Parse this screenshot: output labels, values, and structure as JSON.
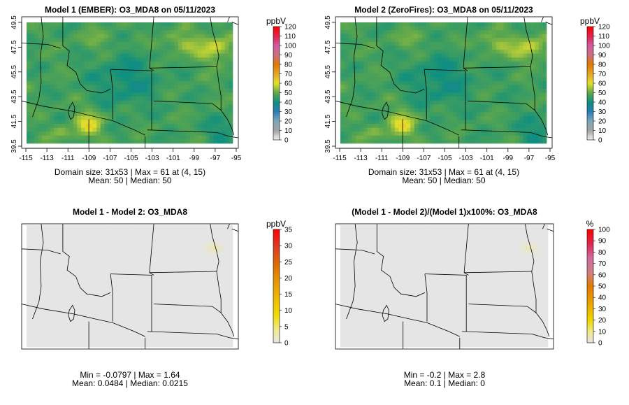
{
  "chart_data": [
    {
      "type": "heatmap",
      "title": "Model 1 (EMBER): O3_MDA8 on 05/11/2023",
      "x_ticks": [
        "-115",
        "-113",
        "-111",
        "-109",
        "-107",
        "-105",
        "-103",
        "-101",
        "-99",
        "-97",
        "-95"
      ],
      "y_ticks": [
        "39.5",
        "41.5",
        "43.5",
        "45.5",
        "47.5",
        "49.5"
      ],
      "xlim": [
        -115,
        -95
      ],
      "ylim": [
        39.5,
        49.5
      ],
      "grid_size": [
        53,
        31
      ],
      "stats_line1": "Domain size: 31x53 | Max = 61 at (4, 15)",
      "stats_line2": "Mean: 50 |  Median: 50",
      "legend": {
        "unit": "ppbV",
        "ticks": [
          "0",
          "10",
          "20",
          "30",
          "40",
          "50",
          "60",
          "70",
          "80",
          "90",
          "100",
          "110",
          "120"
        ],
        "range": [
          0,
          120
        ]
      },
      "field": {
        "min": 40,
        "max": 61,
        "mean": 50,
        "median": 50,
        "max_location": [
          4,
          15
        ]
      }
    },
    {
      "type": "heatmap",
      "title": "Model 2 (ZeroFires): O3_MDA8 on 05/11/2023",
      "x_ticks": [
        "-115",
        "-113",
        "-111",
        "-109",
        "-107",
        "-105",
        "-103",
        "-101",
        "-99",
        "-97",
        "-95"
      ],
      "y_ticks": [
        "39.5",
        "41.5",
        "43.5",
        "45.5",
        "47.5",
        "49.5"
      ],
      "xlim": [
        -115,
        -95
      ],
      "ylim": [
        39.5,
        49.5
      ],
      "grid_size": [
        53,
        31
      ],
      "stats_line1": "Domain size: 31x53 | Max = 61 at (4, 15)",
      "stats_line2": "Mean: 50 |  Median: 50",
      "legend": {
        "unit": "ppbV",
        "ticks": [
          "0",
          "10",
          "20",
          "30",
          "40",
          "50",
          "60",
          "70",
          "80",
          "90",
          "100",
          "110",
          "120"
        ],
        "range": [
          0,
          120
        ]
      },
      "field": {
        "min": 39,
        "max": 61,
        "mean": 50,
        "median": 50,
        "max_location": [
          4,
          15
        ]
      }
    },
    {
      "type": "heatmap",
      "title": "Model 1 - Model 2: O3_MDA8",
      "stats_line1": "Min = -0.0797 | Max = 1.64",
      "stats_line2": "Mean: 0.0484 |  Median: 0.0215",
      "legend": {
        "unit": "ppbV",
        "ticks": [
          "0",
          "5",
          "10",
          "15",
          "20",
          "25",
          "30",
          "35"
        ],
        "range": [
          0,
          35
        ]
      },
      "field": {
        "min": -0.0797,
        "max": 1.64,
        "mean": 0.0484,
        "median": 0.0215
      }
    },
    {
      "type": "heatmap",
      "title": "(Model 1 - Model 2)/(Model 1)x100%: O3_MDA8",
      "stats_line1": "Min = -0.2 | Max = 2.8",
      "stats_line2": "Mean: 0.1 |  Median: 0",
      "legend": {
        "unit": "%",
        "ticks": [
          "0",
          "10",
          "20",
          "30",
          "40",
          "50",
          "60",
          "70",
          "80",
          "90",
          "100"
        ],
        "range": [
          0,
          100
        ]
      },
      "field": {
        "min": -0.2,
        "max": 2.8,
        "mean": 0.1,
        "median": 0
      }
    }
  ]
}
